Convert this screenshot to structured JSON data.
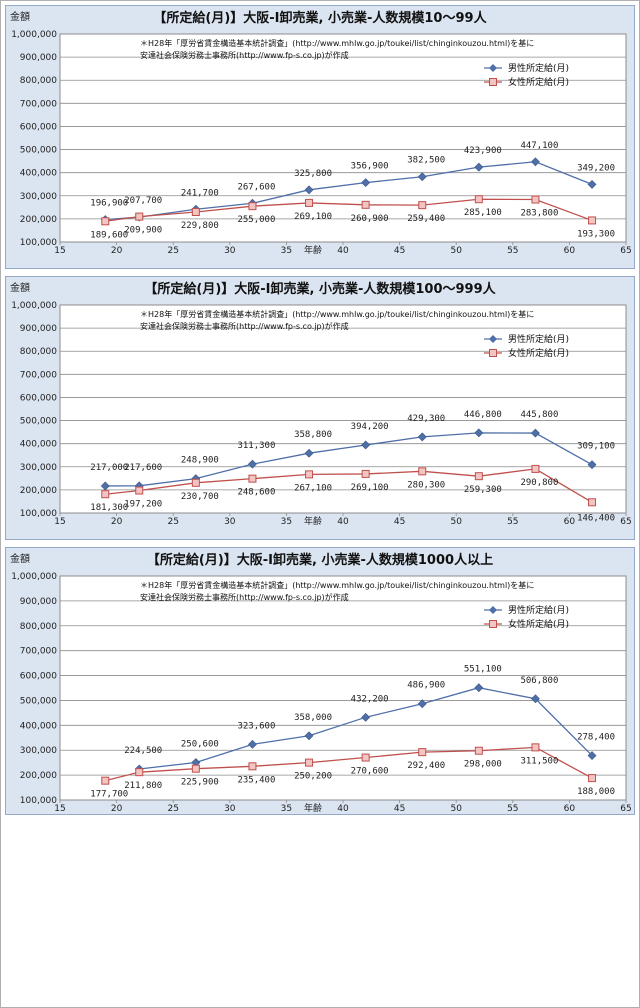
{
  "chart_data": [
    {
      "type": "line",
      "title": "【所定給(月)】大阪-I卸売業, 小売業-人数規模10～99人",
      "ylabel": "金額",
      "xlabel": "年齢",
      "xlim": [
        15,
        65
      ],
      "ylim": [
        100000,
        1000000
      ],
      "x_ticks": [
        "15",
        "20",
        "25",
        "30",
        "35",
        "40",
        "45",
        "50",
        "55",
        "60",
        "65"
      ],
      "y_ticks": [
        "100,000",
        "200,000",
        "300,000",
        "400,000",
        "500,000",
        "600,000",
        "700,000",
        "800,000",
        "900,000",
        "1,000,000"
      ],
      "note_lines": [
        "＊H28年「厚労省賃金構造基本統計調査」(http://www.mhlw.go.jp/toukei/list/chinginkouzou.html)を基に",
        "安達社会保険労務士事務所(http://www.fp-s.co.jp)が作成"
      ],
      "legend_position": "top-right",
      "x": [
        19,
        22,
        27,
        32,
        37,
        42,
        47,
        52,
        57,
        62
      ],
      "series": [
        {
          "name": "男性所定給(月)",
          "color": "#4f6fa8",
          "marker": "diamond",
          "values": [
            196900,
            207700,
            241700,
            267600,
            325800,
            356900,
            382500,
            423900,
            447100,
            349200
          ],
          "labels": [
            "196,900",
            "207,700",
            "241,700",
            "267,600",
            "325,800",
            "356,900",
            "382,500",
            "423,900",
            "447,100",
            "349,200"
          ]
        },
        {
          "name": "女性所定給(月)",
          "color": "#c0504d",
          "marker": "square",
          "values": [
            189600,
            209900,
            229800,
            255000,
            269100,
            260900,
            259400,
            285100,
            283800,
            193300
          ],
          "labels": [
            "189,600",
            "209,900",
            "229,800",
            "255,000",
            "269,100",
            "260,900",
            "259,400",
            "285,100",
            "283,800",
            "193,300"
          ]
        }
      ]
    },
    {
      "type": "line",
      "title": "【所定給(月)】大阪-I卸売業, 小売業-人数規模100～999人",
      "ylabel": "金額",
      "xlabel": "年齢",
      "xlim": [
        15,
        65
      ],
      "ylim": [
        100000,
        1000000
      ],
      "x_ticks": [
        "15",
        "20",
        "25",
        "30",
        "35",
        "40",
        "45",
        "50",
        "55",
        "60",
        "65"
      ],
      "y_ticks": [
        "100,000",
        "200,000",
        "300,000",
        "400,000",
        "500,000",
        "600,000",
        "700,000",
        "800,000",
        "900,000",
        "1,000,000"
      ],
      "note_lines": [
        "＊H28年「厚労省賃金構造基本統計調査」(http://www.mhlw.go.jp/toukei/list/chinginkouzou.html)を基に",
        "安達社会保険労務士事務所(http://www.fp-s.co.jp)が作成"
      ],
      "legend_position": "top-right",
      "x": [
        19,
        22,
        27,
        32,
        37,
        42,
        47,
        52,
        57,
        62
      ],
      "series": [
        {
          "name": "男性所定給(月)",
          "color": "#4f6fa8",
          "marker": "diamond",
          "values": [
            217000,
            217600,
            248900,
            311300,
            358800,
            394200,
            429300,
            446800,
            445800,
            309100
          ],
          "labels": [
            "217,000",
            "217,600",
            "248,900",
            "311,300",
            "358,800",
            "394,200",
            "429,300",
            "446,800",
            "445,800",
            "309,100"
          ]
        },
        {
          "name": "女性所定給(月)",
          "color": "#c0504d",
          "marker": "square",
          "values": [
            181300,
            197200,
            230700,
            248600,
            267100,
            269100,
            280300,
            259300,
            290800,
            146400
          ],
          "labels": [
            "181,300",
            "197,200",
            "230,700",
            "248,600",
            "267,100",
            "269,100",
            "280,300",
            "259,300",
            "290,800",
            "146,400"
          ]
        }
      ]
    },
    {
      "type": "line",
      "title": "【所定給(月)】大阪-I卸売業, 小売業-人数規模1000人以上",
      "ylabel": "金額",
      "xlabel": "年齢",
      "xlim": [
        15,
        65
      ],
      "ylim": [
        100000,
        1000000
      ],
      "x_ticks": [
        "15",
        "20",
        "25",
        "30",
        "35",
        "40",
        "45",
        "50",
        "55",
        "60",
        "65"
      ],
      "y_ticks": [
        "100,000",
        "200,000",
        "300,000",
        "400,000",
        "500,000",
        "600,000",
        "700,000",
        "800,000",
        "900,000",
        "1,000,000"
      ],
      "note_lines": [
        "＊H28年「厚労省賃金構造基本統計調査」(http://www.mhlw.go.jp/toukei/list/chinginkouzou.html)を基に",
        "安達社会保険労務士事務所(http://www.fp-s.co.jp)が作成"
      ],
      "legend_position": "top-right",
      "x": [
        19,
        22,
        27,
        32,
        37,
        42,
        47,
        52,
        57,
        62
      ],
      "series": [
        {
          "name": "男性所定給(月)",
          "color": "#4f6fa8",
          "marker": "diamond",
          "x": [
            22,
            27,
            32,
            37,
            42,
            47,
            52,
            57,
            62
          ],
          "values": [
            224500,
            250600,
            323600,
            358000,
            432200,
            486900,
            551100,
            506800,
            278400
          ],
          "labels": [
            "224,500",
            "250,600",
            "323,600",
            "358,000",
            "432,200",
            "486,900",
            "551,100",
            "506,800",
            "278,400"
          ]
        },
        {
          "name": "女性所定給(月)",
          "color": "#c0504d",
          "marker": "square",
          "values": [
            177700,
            211800,
            225900,
            235400,
            250200,
            270600,
            292400,
            298000,
            311500,
            188000
          ],
          "labels": [
            "177,700",
            "211,800",
            "225,900",
            "235,400",
            "250,200",
            "270,600",
            "292,400",
            "298,000",
            "311,500",
            "188,000"
          ]
        }
      ]
    }
  ]
}
